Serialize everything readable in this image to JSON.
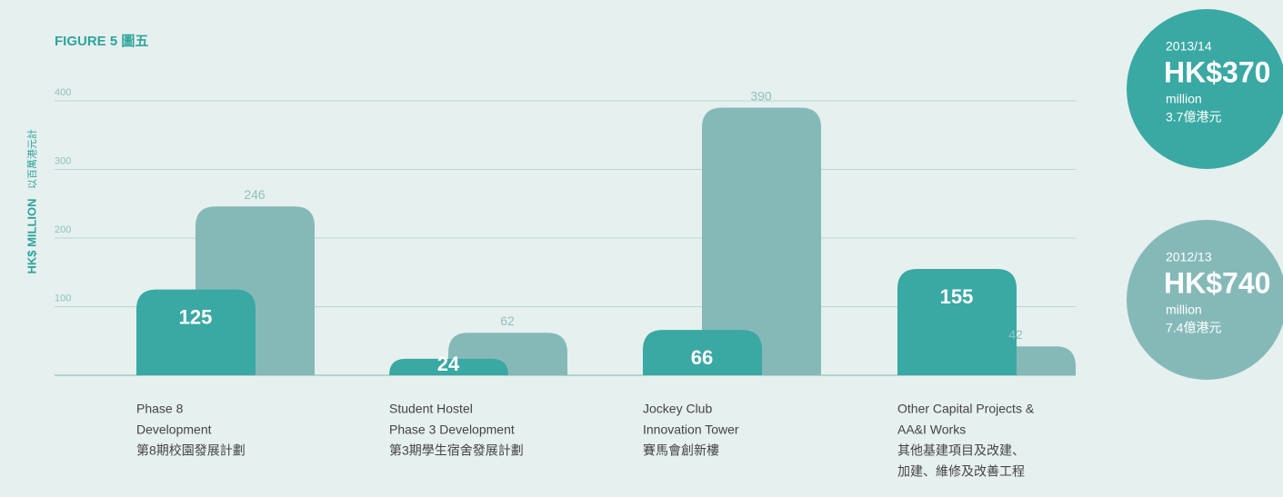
{
  "chart_data": {
    "type": "bar",
    "title": "FIGURE 5 圖五",
    "y_label": "HK$ MILLION",
    "y_label_zh": "以百萬港元計",
    "categories": [
      [
        "Phase 8",
        "Development",
        "第8期校園發展計劃"
      ],
      [
        "Student Hostel",
        "Phase 3 Development",
        "第3期學生宿舍發展計劃"
      ],
      [
        "Jockey Club",
        "Innovation Tower",
        "賽馬會創新樓"
      ],
      [
        "Other Capital Projects &",
        "AA&I Works",
        "其他基建項目及改建、",
        "加建、維修及改善工程"
      ]
    ],
    "series": [
      {
        "name": "2013/14",
        "color": "#3aa8a3",
        "values": [
          125,
          24,
          66,
          155
        ],
        "total": 370,
        "total_label": "HK$370",
        "unit": "million",
        "total_zh": "3.7億港元"
      },
      {
        "name": "2012/13",
        "color": "#85b9b8",
        "values": [
          246,
          62,
          390,
          42
        ],
        "total": 740,
        "total_label": "HK$740",
        "unit": "million",
        "total_zh": "7.4億港元"
      }
    ],
    "ylim": [
      0,
      400
    ],
    "yticks": [
      100,
      200,
      300,
      400
    ],
    "grid": true
  }
}
